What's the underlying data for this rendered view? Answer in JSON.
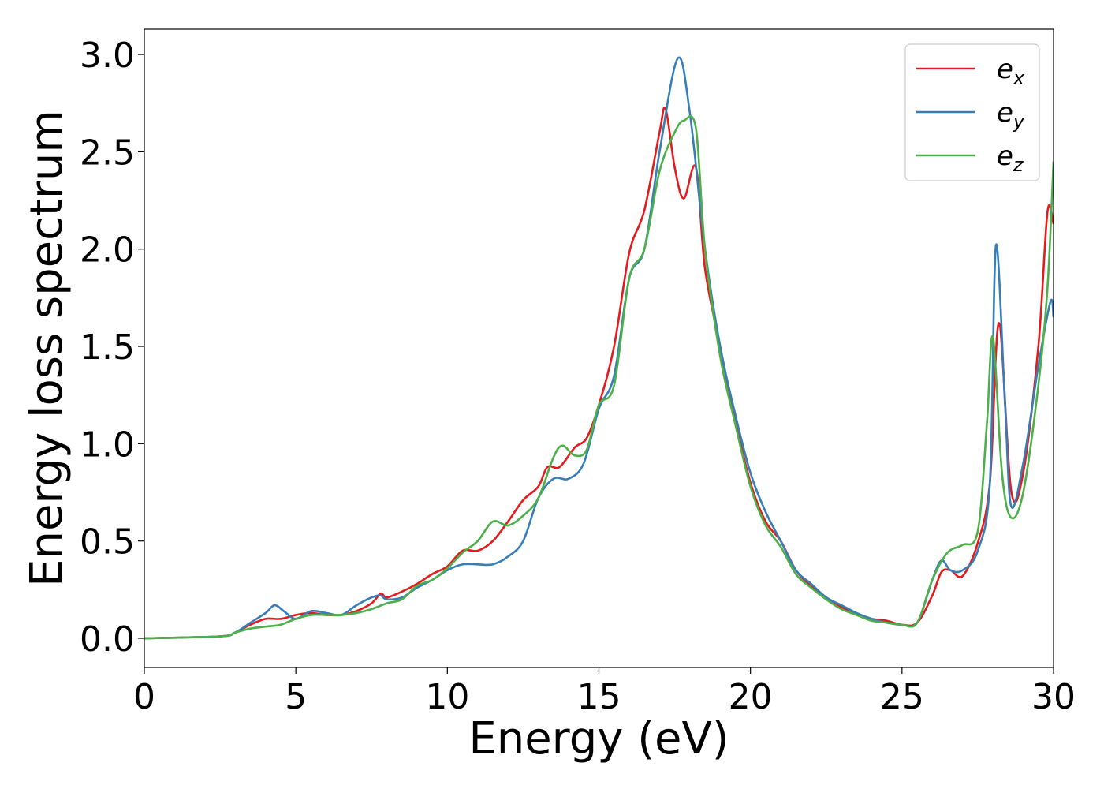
{
  "chart_data": {
    "type": "line",
    "xlabel": "Energy (eV)",
    "ylabel": "Energy loss spectrum",
    "xlim": [
      0,
      30
    ],
    "ylim": [
      -0.15,
      3.13
    ],
    "x_ticks": [
      "0",
      "5",
      "10",
      "15",
      "20",
      "25",
      "30"
    ],
    "y_ticks": [
      "0.0",
      "0.5",
      "1.0",
      "1.5",
      "2.0",
      "2.5",
      "3.0"
    ],
    "grid": false,
    "legend_position": "top-right",
    "series": [
      {
        "name": "e",
        "subscript": "x",
        "color": "#e41a1c",
        "points": [
          [
            0,
            0
          ],
          [
            2.5,
            0.01
          ],
          [
            3,
            0.03
          ],
          [
            3.5,
            0.07
          ],
          [
            4,
            0.1
          ],
          [
            4.5,
            0.1
          ],
          [
            5,
            0.12
          ],
          [
            5.5,
            0.13
          ],
          [
            6,
            0.12
          ],
          [
            6.5,
            0.12
          ],
          [
            7,
            0.14
          ],
          [
            7.5,
            0.18
          ],
          [
            7.8,
            0.23
          ],
          [
            8,
            0.21
          ],
          [
            8.5,
            0.24
          ],
          [
            9,
            0.28
          ],
          [
            9.5,
            0.33
          ],
          [
            10,
            0.37
          ],
          [
            10.5,
            0.45
          ],
          [
            11,
            0.45
          ],
          [
            11.5,
            0.5
          ],
          [
            12,
            0.6
          ],
          [
            12.5,
            0.71
          ],
          [
            13,
            0.78
          ],
          [
            13.3,
            0.88
          ],
          [
            13.7,
            0.88
          ],
          [
            14.2,
            0.98
          ],
          [
            14.6,
            1.03
          ],
          [
            15,
            1.2
          ],
          [
            15.5,
            1.5
          ],
          [
            16,
            1.98
          ],
          [
            16.5,
            2.2
          ],
          [
            17,
            2.6
          ],
          [
            17.2,
            2.72
          ],
          [
            17.5,
            2.42
          ],
          [
            17.8,
            2.26
          ],
          [
            18.2,
            2.42
          ],
          [
            18.5,
            1.9
          ],
          [
            19,
            1.5
          ],
          [
            19.5,
            1.12
          ],
          [
            20,
            0.8
          ],
          [
            20.5,
            0.6
          ],
          [
            21,
            0.5
          ],
          [
            21.5,
            0.35
          ],
          [
            22,
            0.27
          ],
          [
            22.5,
            0.21
          ],
          [
            23,
            0.16
          ],
          [
            23.5,
            0.12
          ],
          [
            24,
            0.1
          ],
          [
            24.5,
            0.09
          ],
          [
            25,
            0.07
          ],
          [
            25.5,
            0.08
          ],
          [
            26,
            0.22
          ],
          [
            26.3,
            0.34
          ],
          [
            26.6,
            0.35
          ],
          [
            27,
            0.32
          ],
          [
            27.5,
            0.49
          ],
          [
            27.9,
            0.8
          ],
          [
            28.2,
            1.62
          ],
          [
            28.6,
            0.76
          ],
          [
            29,
            0.85
          ],
          [
            29.5,
            1.5
          ],
          [
            29.8,
            2.19
          ],
          [
            30,
            2.13
          ]
        ]
      },
      {
        "name": "e",
        "subscript": "y",
        "color": "#377eb8",
        "points": [
          [
            0,
            0
          ],
          [
            2.5,
            0.01
          ],
          [
            3,
            0.03
          ],
          [
            3.5,
            0.08
          ],
          [
            4,
            0.13
          ],
          [
            4.3,
            0.17
          ],
          [
            4.6,
            0.14
          ],
          [
            5,
            0.1
          ],
          [
            5.5,
            0.14
          ],
          [
            6,
            0.13
          ],
          [
            6.5,
            0.12
          ],
          [
            7,
            0.17
          ],
          [
            7.5,
            0.21
          ],
          [
            7.8,
            0.22
          ],
          [
            8,
            0.2
          ],
          [
            8.5,
            0.21
          ],
          [
            9,
            0.26
          ],
          [
            9.5,
            0.3
          ],
          [
            10,
            0.35
          ],
          [
            10.5,
            0.38
          ],
          [
            11,
            0.38
          ],
          [
            11.5,
            0.38
          ],
          [
            12,
            0.42
          ],
          [
            12.5,
            0.5
          ],
          [
            13,
            0.72
          ],
          [
            13.5,
            0.82
          ],
          [
            14,
            0.82
          ],
          [
            14.5,
            0.9
          ],
          [
            15,
            1.18
          ],
          [
            15.5,
            1.35
          ],
          [
            16,
            1.85
          ],
          [
            16.5,
            2.0
          ],
          [
            17,
            2.5
          ],
          [
            17.6,
            2.98
          ],
          [
            18,
            2.7
          ],
          [
            18.5,
            2.0
          ],
          [
            19,
            1.5
          ],
          [
            19.5,
            1.15
          ],
          [
            20,
            0.85
          ],
          [
            20.5,
            0.65
          ],
          [
            21,
            0.5
          ],
          [
            21.5,
            0.35
          ],
          [
            22,
            0.28
          ],
          [
            22.5,
            0.21
          ],
          [
            23,
            0.17
          ],
          [
            23.5,
            0.13
          ],
          [
            24,
            0.1
          ],
          [
            24.5,
            0.08
          ],
          [
            25,
            0.07
          ],
          [
            25.5,
            0.08
          ],
          [
            26,
            0.3
          ],
          [
            26.3,
            0.4
          ],
          [
            26.6,
            0.35
          ],
          [
            27,
            0.35
          ],
          [
            27.5,
            0.45
          ],
          [
            27.9,
            0.8
          ],
          [
            28.1,
            2.02
          ],
          [
            28.4,
            1.2
          ],
          [
            28.6,
            0.68
          ],
          [
            29,
            0.9
          ],
          [
            29.5,
            1.4
          ],
          [
            29.9,
            1.73
          ],
          [
            30,
            1.65
          ]
        ]
      },
      {
        "name": "e",
        "subscript": "z",
        "color": "#4daf4a",
        "points": [
          [
            0,
            0
          ],
          [
            2.5,
            0.01
          ],
          [
            3,
            0.03
          ],
          [
            3.5,
            0.05
          ],
          [
            4,
            0.06
          ],
          [
            4.5,
            0.07
          ],
          [
            5,
            0.1
          ],
          [
            5.5,
            0.12
          ],
          [
            6,
            0.12
          ],
          [
            6.5,
            0.12
          ],
          [
            7,
            0.13
          ],
          [
            7.5,
            0.15
          ],
          [
            8,
            0.18
          ],
          [
            8.5,
            0.2
          ],
          [
            9,
            0.27
          ],
          [
            9.5,
            0.3
          ],
          [
            10,
            0.36
          ],
          [
            10.5,
            0.44
          ],
          [
            11,
            0.5
          ],
          [
            11.5,
            0.6
          ],
          [
            12,
            0.58
          ],
          [
            12.5,
            0.63
          ],
          [
            13,
            0.72
          ],
          [
            13.5,
            0.93
          ],
          [
            13.8,
            0.99
          ],
          [
            14.2,
            0.94
          ],
          [
            14.6,
            0.97
          ],
          [
            15,
            1.2
          ],
          [
            15.5,
            1.3
          ],
          [
            16,
            1.85
          ],
          [
            16.5,
            2.0
          ],
          [
            17,
            2.4
          ],
          [
            17.5,
            2.6
          ],
          [
            17.8,
            2.66
          ],
          [
            18.2,
            2.62
          ],
          [
            18.5,
            2.0
          ],
          [
            19,
            1.45
          ],
          [
            19.5,
            1.1
          ],
          [
            20,
            0.78
          ],
          [
            20.5,
            0.58
          ],
          [
            21,
            0.47
          ],
          [
            21.5,
            0.33
          ],
          [
            22,
            0.26
          ],
          [
            22.5,
            0.2
          ],
          [
            23,
            0.15
          ],
          [
            23.5,
            0.12
          ],
          [
            24,
            0.09
          ],
          [
            24.5,
            0.08
          ],
          [
            25,
            0.07
          ],
          [
            25.5,
            0.08
          ],
          [
            26,
            0.3
          ],
          [
            26.5,
            0.44
          ],
          [
            27,
            0.48
          ],
          [
            27.5,
            0.55
          ],
          [
            27.8,
            1.1
          ],
          [
            28.0,
            1.55
          ],
          [
            28.3,
            0.85
          ],
          [
            28.6,
            0.62
          ],
          [
            29,
            0.75
          ],
          [
            29.5,
            1.3
          ],
          [
            29.8,
            1.8
          ],
          [
            30,
            2.45
          ]
        ]
      }
    ]
  }
}
